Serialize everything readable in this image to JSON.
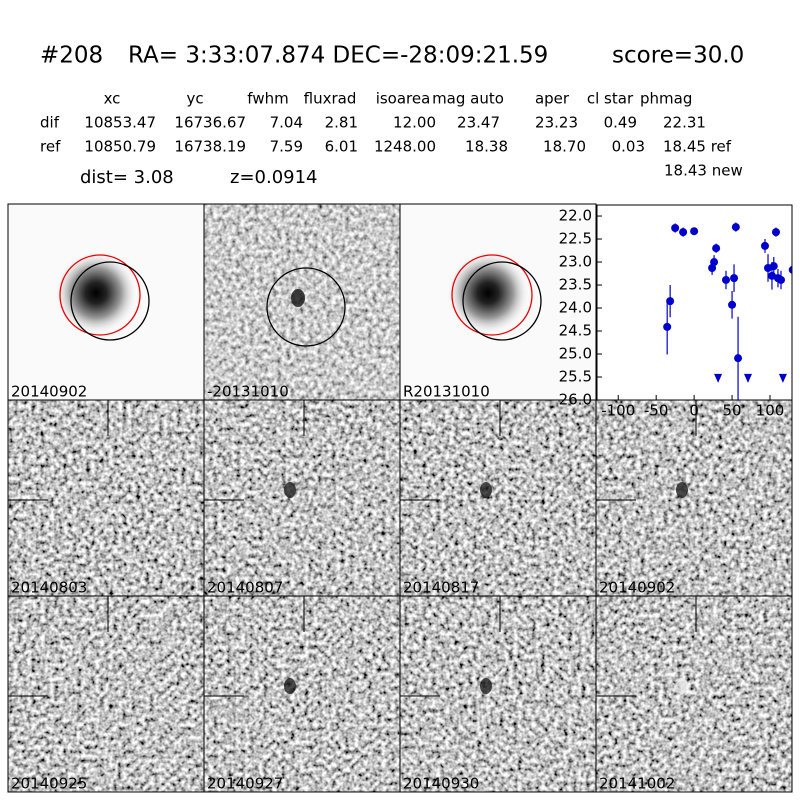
{
  "header": {
    "id": "#208",
    "coords": "RA= 3:33:07.874 DEC=-28:09:21.59",
    "score": "score=30.0"
  },
  "table": {
    "columns": [
      "xc",
      "yc",
      "fwhm",
      "fluxrad",
      "isoarea",
      "mag auto",
      "aper",
      "cl star",
      "phmag"
    ],
    "rows": [
      {
        "label": "dif",
        "cells": [
          "10853.47",
          "16736.67",
          "7.04",
          "2.81",
          "12.00",
          "23.47",
          "23.23",
          "0.49",
          "22.31"
        ]
      },
      {
        "label": "ref",
        "cells": [
          "10850.79",
          "16738.19",
          "7.59",
          "6.01",
          "1248.00",
          "18.38",
          "18.70",
          "0.03",
          "18.45 ref"
        ]
      }
    ],
    "extra": "18.43 new"
  },
  "info": {
    "dist": "dist=  3.08",
    "z": "z=0.0914"
  },
  "panels": [
    {
      "label": "20140902"
    },
    {
      "label": "-20131010"
    },
    {
      "label": "R20131010"
    },
    {
      "label": "20140803"
    },
    {
      "label": "20140807"
    },
    {
      "label": "20140817"
    },
    {
      "label": "20140902",
      "color": "#ff0000"
    },
    {
      "label": "20140925"
    },
    {
      "label": "20140927"
    },
    {
      "label": "20140930"
    },
    {
      "label": "20141002"
    }
  ],
  "chart_data": {
    "type": "scatter",
    "xlim": [
      -128,
      129
    ],
    "ylim": [
      21.76,
      26.0
    ],
    "y_inverted": true,
    "xticks": [
      -100,
      -50,
      0,
      50,
      100
    ],
    "yticks": [
      {
        "value": 22.0,
        "label": "22.0"
      },
      {
        "value": 22.5,
        "label": "22.5"
      },
      {
        "value": 23.0,
        "label": "23.0"
      },
      {
        "value": 23.5,
        "label": "23.5"
      },
      {
        "value": 24.0,
        "label": "24.0"
      },
      {
        "value": 24.5,
        "label": "24.5"
      },
      {
        "value": 25.0,
        "label": "25.0"
      },
      {
        "value": 25.5,
        "label": "25.5"
      },
      {
        "value": 26.0,
        "label": "26.0"
      }
    ],
    "series": [
      {
        "color": "#0000cc",
        "marker": "circle",
        "x": [
          -35.5,
          -31.6,
          -25,
          -14.5,
          0,
          23.7,
          26.3,
          29,
          42,
          50,
          52.6,
          55,
          57.9,
          93.4,
          97.4,
          102.6,
          105,
          107.9,
          110.5,
          114.5,
          130
        ],
        "values": [
          24.41,
          23.85,
          22.26,
          22.35,
          22.33,
          23.13,
          23.0,
          22.7,
          23.39,
          23.93,
          23.35,
          22.24,
          25.09,
          22.65,
          23.13,
          23.3,
          23.09,
          22.35,
          23.35,
          23.39,
          23.17
        ],
        "errors": [
          0.6,
          0.35,
          0.1,
          0.1,
          0.08,
          0.15,
          0.15,
          0.1,
          0.2,
          0.3,
          0.3,
          0.1,
          0.9,
          0.15,
          0.3,
          0.3,
          0.2,
          0.1,
          0.2,
          0.2,
          0.2
        ]
      },
      {
        "color": "#0000cc",
        "marker": "triangle-down",
        "x": [
          31.6,
          71,
          117
        ],
        "values": [
          25.52,
          25.52,
          25.52
        ]
      }
    ]
  }
}
